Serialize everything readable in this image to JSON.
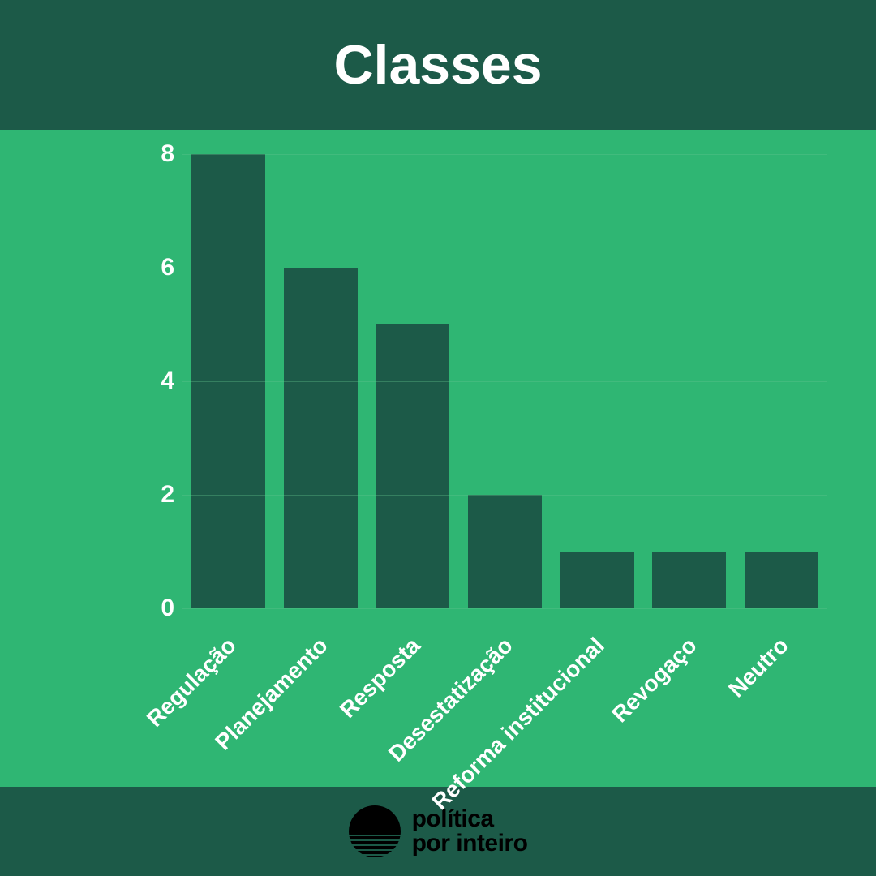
{
  "colors": {
    "outer_bg": "#1c5a48",
    "chart_bg": "#2fb673",
    "bar_fill": "#1c5a48",
    "grid": "#63c78f",
    "title_text": "#ffffff",
    "axis_text": "#ffffff",
    "logo_fill": "#000000"
  },
  "header": {
    "title": "Classes",
    "title_fontsize": 68
  },
  "chart": {
    "type": "bar",
    "ylim": [
      0,
      8
    ],
    "ytick_step": 2,
    "yticks": [
      0,
      2,
      4,
      6,
      8
    ],
    "bar_width_ratio": 0.8,
    "categories": [
      "Regulação",
      "Planejamento",
      "Resposta",
      "Desestatização",
      "Reforma institucional",
      "Revogaço",
      "Neutro"
    ],
    "values": [
      8,
      6,
      5,
      2,
      1,
      1,
      1
    ],
    "xlabel_rotation_deg": -45,
    "xlabel_fontsize": 28,
    "ytick_fontsize": 30
  },
  "footer": {
    "brand_line1": "política",
    "brand_line2": "por inteiro"
  }
}
